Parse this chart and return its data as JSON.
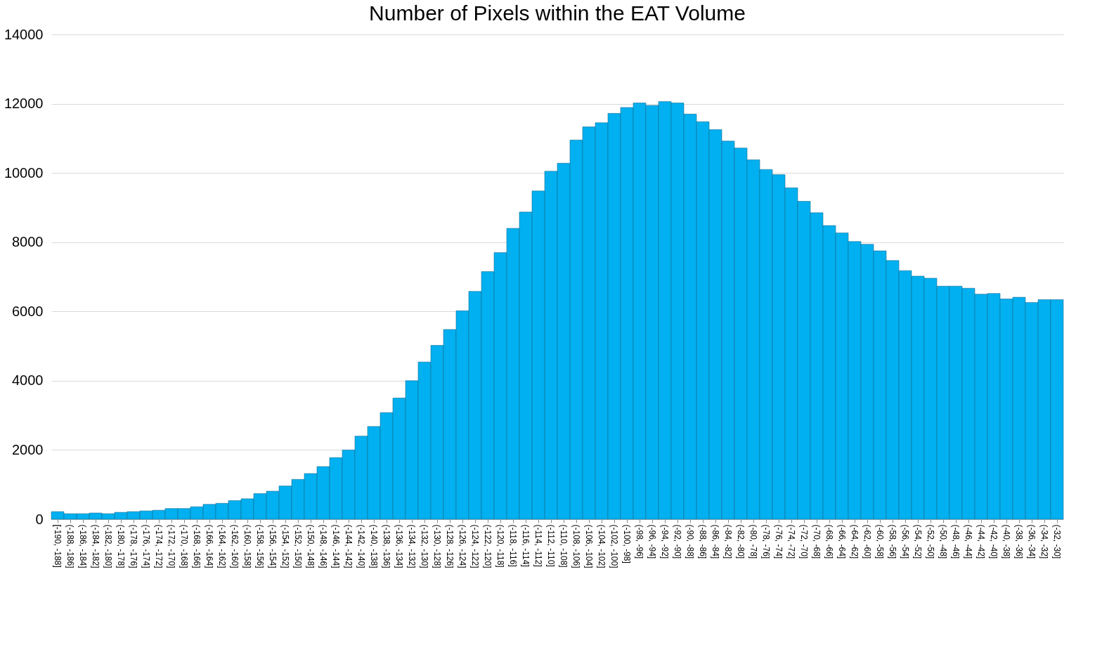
{
  "chart_data": {
    "type": "bar",
    "title": "Number of Pixels within the EAT Volume",
    "categories": [
      "[-190, -188]",
      "(-188, -186]",
      "(-186, -184]",
      "(-184, -182]",
      "(-182, -180]",
      "(-180, -178]",
      "(-178, -176]",
      "(-176, -174]",
      "(-174, -172]",
      "(-172, -170]",
      "(-170, -168]",
      "(-168, -166]",
      "(-166, -164]",
      "(-164, -162]",
      "(-162, -160]",
      "(-160, -158]",
      "(-158, -156]",
      "(-156, -154]",
      "(-154, -152]",
      "(-152, -150]",
      "(-150, -148]",
      "(-148, -146]",
      "(-146, -144]",
      "(-144, -142]",
      "(-142, -140]",
      "(-140, -138]",
      "(-138, -136]",
      "(-136, -134]",
      "(-134, -132]",
      "(-132, -130]",
      "(-130, -128]",
      "(-128, -126]",
      "(-126, -124]",
      "(-124, -122]",
      "(-122, -120]",
      "(-120, -118]",
      "(-118, -116]",
      "(-116, -114]",
      "(-114, -112]",
      "(-112, -110]",
      "(-110, -108]",
      "(-108, -106]",
      "(-106, -104]",
      "(-104, -102]",
      "(-102, -100]",
      "(-100, -98]",
      "(-98, -96]",
      "(-96, -94]",
      "(-94, -92]",
      "(-92, -90]",
      "(-90, -88]",
      "(-88, -86]",
      "(-86, -84]",
      "(-84, -82]",
      "(-82, -80]",
      "(-80, -78]",
      "(-78, -76]",
      "(-76, -74]",
      "(-74, -72]",
      "(-72, -70]",
      "(-70, -68]",
      "(-68, -66]",
      "(-66, -64]",
      "(-64, -62]",
      "(-62, -60]",
      "(-60, -58]",
      "(-58, -56]",
      "(-56, -54]",
      "(-54, -52]",
      "(-52, -50]",
      "(-50, -48]",
      "(-48, -46]",
      "(-46, -44]",
      "(-44, -42]",
      "(-42, -40]",
      "(-40, -38]",
      "(-38, -36]",
      "(-36, -34]",
      "(-34, -32]",
      "(-32, -30]"
    ],
    "values": [
      220,
      160,
      160,
      180,
      160,
      200,
      220,
      240,
      260,
      310,
      310,
      360,
      430,
      460,
      540,
      590,
      740,
      810,
      960,
      1150,
      1320,
      1520,
      1780,
      2000,
      2400,
      2680,
      3080,
      3500,
      4000,
      4540,
      5020,
      5480,
      6020,
      6580,
      7150,
      7700,
      8400,
      8870,
      9480,
      10050,
      10280,
      10950,
      11330,
      11450,
      11720,
      11890,
      12020,
      11950,
      12060,
      12020,
      11700,
      11480,
      11250,
      10920,
      10720,
      10380,
      10100,
      9950,
      9570,
      9180,
      8850,
      8480,
      8270,
      8020,
      7940,
      7750,
      7470,
      7180,
      7020,
      6960,
      6730,
      6730,
      6670,
      6500,
      6520,
      6360,
      6410,
      6260,
      6340,
      6340
    ],
    "color": "#00b0f0",
    "ylim": [
      0,
      14000
    ],
    "yticks": [
      0,
      2000,
      4000,
      6000,
      8000,
      10000,
      12000,
      14000
    ],
    "grid": "y"
  }
}
